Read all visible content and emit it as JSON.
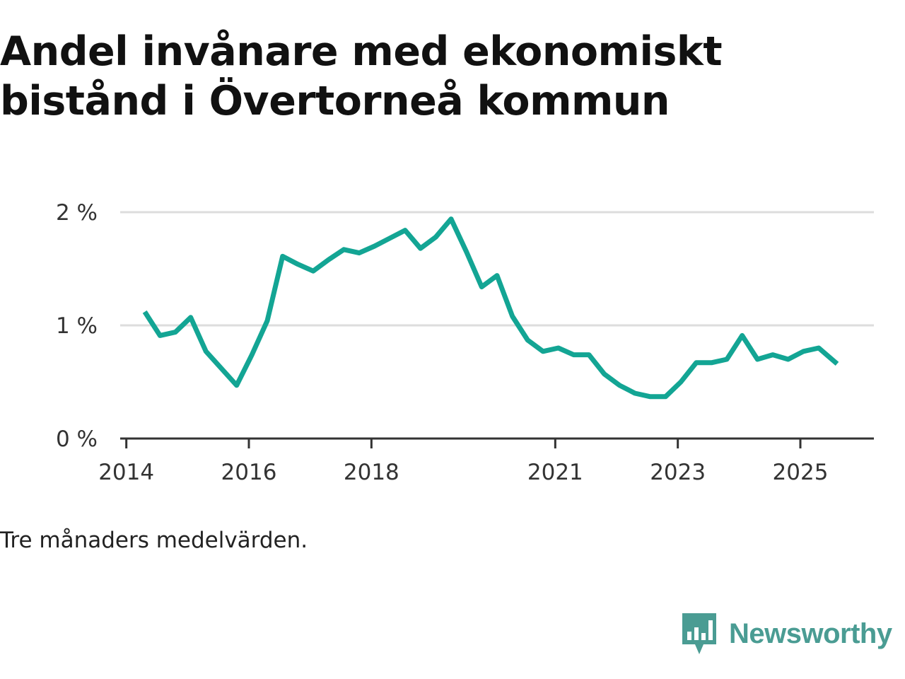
{
  "title": "Andel invånare med ekonomiskt bistånd i Övertorneå kommun",
  "note": "Tre månaders medelvärden.",
  "brand": {
    "name": "Newsworthy",
    "icon": "newsworthy-chart-bubble-icon",
    "color": "#4a9c93"
  },
  "colors": {
    "line": "#13a594",
    "grid": "#dddddd",
    "axis": "#333333"
  },
  "chart_data": {
    "type": "line",
    "title": "Andel invånare med ekonomiskt bistånd i Övertorneå kommun",
    "xlabel": "",
    "ylabel": "",
    "ylim": [
      0,
      2
    ],
    "xlim": [
      2013.9,
      2026.2
    ],
    "y_ticks": [
      {
        "value": 0,
        "label": "0 %"
      },
      {
        "value": 1,
        "label": "1 %"
      },
      {
        "value": 2,
        "label": "2 %"
      }
    ],
    "x_ticks": [
      {
        "value": 2014,
        "label": "2014"
      },
      {
        "value": 2016,
        "label": "2016"
      },
      {
        "value": 2018,
        "label": "2018"
      },
      {
        "value": 2021,
        "label": "2021"
      },
      {
        "value": 2023,
        "label": "2023"
      },
      {
        "value": 2025,
        "label": "2025"
      }
    ],
    "series": [
      {
        "name": "Andel invånare med ekonomiskt bistånd",
        "x": [
          2014.3,
          2014.55,
          2014.8,
          2015.05,
          2015.3,
          2015.55,
          2015.8,
          2016.05,
          2016.3,
          2016.55,
          2016.8,
          2017.05,
          2017.3,
          2017.55,
          2017.8,
          2018.05,
          2018.3,
          2018.55,
          2018.8,
          2019.05,
          2019.3,
          2019.55,
          2019.8,
          2020.05,
          2020.3,
          2020.55,
          2020.8,
          2021.05,
          2021.3,
          2021.55,
          2021.8,
          2022.05,
          2022.3,
          2022.55,
          2022.8,
          2023.05,
          2023.3,
          2023.55,
          2023.8,
          2024.05,
          2024.3,
          2024.55,
          2024.8,
          2025.05,
          2025.3,
          2025.6
        ],
        "values": [
          1.12,
          0.91,
          0.94,
          1.07,
          0.77,
          0.62,
          0.47,
          0.74,
          1.04,
          1.61,
          1.54,
          1.48,
          1.58,
          1.67,
          1.64,
          1.7,
          1.77,
          1.84,
          1.68,
          1.78,
          1.94,
          1.65,
          1.34,
          1.44,
          1.08,
          0.87,
          0.77,
          0.8,
          0.74,
          0.74,
          0.57,
          0.47,
          0.4,
          0.37,
          0.37,
          0.5,
          0.67,
          0.67,
          0.7,
          0.91,
          0.7,
          0.74,
          0.7,
          0.77,
          0.8,
          0.66
        ]
      }
    ]
  }
}
